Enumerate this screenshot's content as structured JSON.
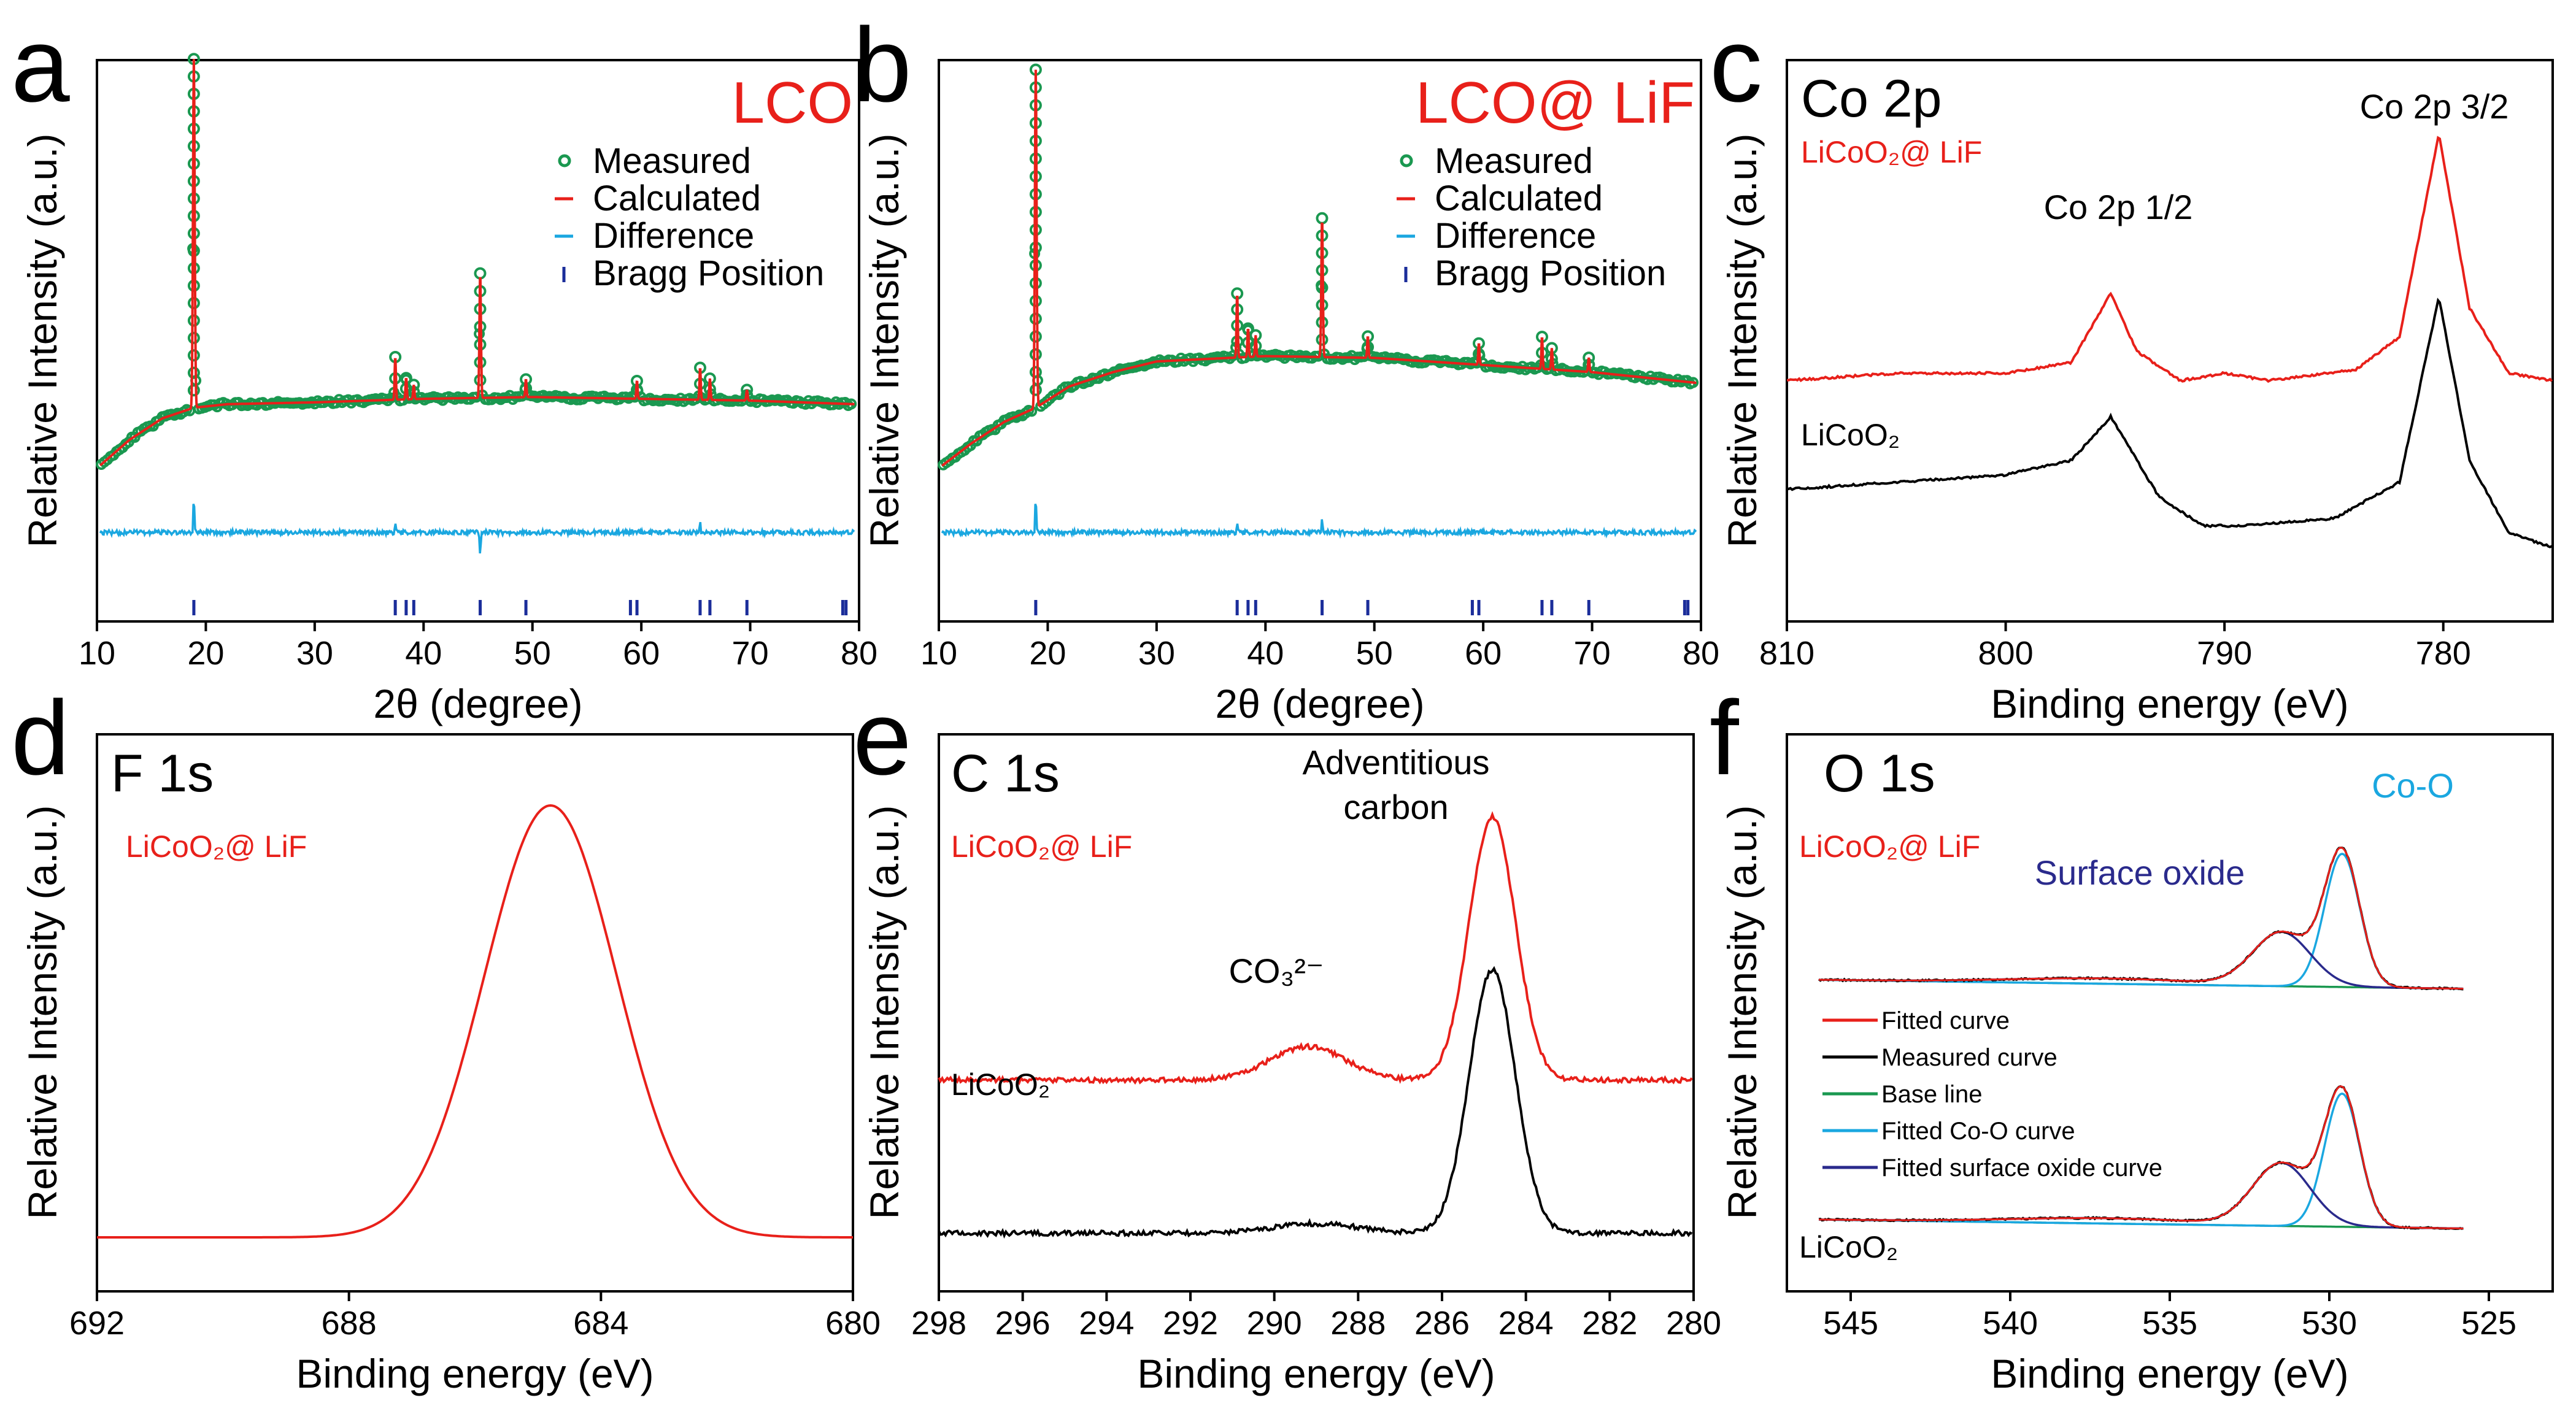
{
  "chart_data": [
    {
      "id": "a",
      "panel_label": "a",
      "type": "line",
      "title": "LCO",
      "xlabel": "2θ (degree)",
      "ylabel": "Relative Intensity (a.u.)",
      "xlim": [
        10,
        80
      ],
      "xticks": [
        "10",
        "20",
        "30",
        "40",
        "50",
        "60",
        "70",
        "80"
      ],
      "colors": {
        "measured": "#1a9850",
        "calculated": "#e8201a",
        "difference": "#1aa7e0",
        "bragg": "#1b2d9a",
        "title": "#e8201a"
      },
      "legend": [
        "Measured",
        "Calculated",
        "Difference",
        "Bragg Position"
      ],
      "series": [
        {
          "name": "Calculated",
          "background": [
            [
              10,
              0.06
            ],
            [
              13,
              0.14
            ],
            [
              16,
              0.2
            ],
            [
              18.9,
              0.23
            ],
            [
              22,
              0.24
            ],
            [
              30,
              0.245
            ],
            [
              40,
              0.255
            ],
            [
              50,
              0.26
            ],
            [
              60,
              0.255
            ],
            [
              70,
              0.25
            ],
            [
              79.5,
              0.24
            ]
          ],
          "peaks": [
            [
              18.9,
              0.98,
              0.08
            ],
            [
              37.4,
              0.12,
              0.06
            ],
            [
              38.4,
              0.06,
              0.06
            ],
            [
              39.1,
              0.04,
              0.06
            ],
            [
              45.2,
              0.35,
              0.07
            ],
            [
              49.4,
              0.05,
              0.06
            ],
            [
              59.6,
              0.05,
              0.06
            ],
            [
              65.4,
              0.09,
              0.06
            ],
            [
              66.3,
              0.06,
              0.06
            ],
            [
              69.7,
              0.03,
              0.06
            ]
          ]
        },
        {
          "name": "Difference",
          "level": 0.5,
          "spikes": [
            [
              18.9,
              0.1
            ],
            [
              37.4,
              0.02
            ],
            [
              45.2,
              -0.06
            ],
            [
              65.4,
              0.03
            ]
          ]
        }
      ],
      "bragg_positions": [
        18.9,
        37.4,
        38.4,
        39.1,
        45.2,
        49.4,
        59.0,
        59.6,
        65.4,
        66.3,
        69.7,
        78.5,
        78.8
      ]
    },
    {
      "id": "b",
      "panel_label": "b",
      "type": "line",
      "title": "LCO@ LiF",
      "xlabel": "2θ (degree)",
      "ylabel": "Relative Intensity (a.u.)",
      "xlim": [
        10,
        80
      ],
      "xticks": [
        "10",
        "20",
        "30",
        "40",
        "50",
        "60",
        "70",
        "80"
      ],
      "colors": {
        "measured": "#1a9850",
        "calculated": "#e8201a",
        "difference": "#1aa7e0",
        "bragg": "#1b2d9a",
        "title": "#e8201a"
      },
      "legend": [
        "Measured",
        "Calculated",
        "Difference",
        "Bragg Position"
      ],
      "series": [
        {
          "name": "Calculated",
          "background": [
            [
              10,
              0.06
            ],
            [
              13,
              0.13
            ],
            [
              16,
              0.19
            ],
            [
              18.9,
              0.23
            ],
            [
              22,
              0.29
            ],
            [
              26,
              0.33
            ],
            [
              30,
              0.36
            ],
            [
              40,
              0.375
            ],
            [
              50,
              0.37
            ],
            [
              60,
              0.35
            ],
            [
              70,
              0.33
            ],
            [
              79.5,
              0.3
            ]
          ],
          "peaks": [
            [
              18.9,
              0.95,
              0.08
            ],
            [
              37.4,
              0.18,
              0.06
            ],
            [
              38.4,
              0.08,
              0.06
            ],
            [
              39.1,
              0.06,
              0.06
            ],
            [
              45.2,
              0.39,
              0.07
            ],
            [
              49.4,
              0.06,
              0.06
            ],
            [
              59.6,
              0.06,
              0.06
            ],
            [
              65.4,
              0.09,
              0.06
            ],
            [
              66.3,
              0.06,
              0.06
            ],
            [
              69.7,
              0.04,
              0.06
            ]
          ]
        },
        {
          "name": "Difference",
          "level": 0.5,
          "spikes": [
            [
              18.9,
              0.1
            ],
            [
              37.4,
              0.02
            ],
            [
              45.2,
              0.04
            ]
          ]
        }
      ],
      "bragg_positions": [
        18.9,
        37.4,
        38.4,
        39.1,
        45.2,
        49.4,
        59.0,
        59.6,
        65.4,
        66.3,
        69.7,
        78.5,
        78.8
      ]
    },
    {
      "id": "c",
      "panel_label": "c",
      "type": "line",
      "title": "Co 2p",
      "xlabel": "Binding energy (eV)",
      "ylabel": "Relative Intensity (a.u.)",
      "xlim": [
        810,
        775
      ],
      "xticks": [
        "810",
        "800",
        "790",
        "780"
      ],
      "series": [
        {
          "name": "LiCoO2@ LiF",
          "color": "#e8201a",
          "offset": 0.52,
          "points": [
            [
              810,
              0.0
            ],
            [
              805,
              0.02
            ],
            [
              800,
              0.02
            ],
            [
              797,
              0.05
            ],
            [
              795.2,
              0.24
            ],
            [
              794,
              0.08
            ],
            [
              792,
              0.0
            ],
            [
              790,
              0.02
            ],
            [
              788,
              0.0
            ],
            [
              784,
              0.03
            ],
            [
              782,
              0.12
            ],
            [
              780.2,
              0.68
            ],
            [
              778.8,
              0.2
            ],
            [
              777,
              0.02
            ],
            [
              775,
              0.0
            ]
          ]
        },
        {
          "name": "LiCoO2",
          "color": "#000000",
          "offset": 0.0,
          "points": [
            [
              810,
              0.22
            ],
            [
              805,
              0.24
            ],
            [
              800,
              0.26
            ],
            [
              797,
              0.3
            ],
            [
              795.2,
              0.42
            ],
            [
              793,
              0.2
            ],
            [
              791,
              0.12
            ],
            [
              789,
              0.12
            ],
            [
              785,
              0.14
            ],
            [
              782,
              0.24
            ],
            [
              780.2,
              0.75
            ],
            [
              778.8,
              0.3
            ],
            [
              777,
              0.1
            ],
            [
              775,
              0.06
            ]
          ]
        }
      ],
      "annotations": [
        "Co 2p 1/2",
        "Co 2p 3/2",
        "LiCoO₂@ LiF",
        "LiCoO₂"
      ]
    },
    {
      "id": "d",
      "panel_label": "d",
      "type": "line",
      "title": "F 1s",
      "xlabel": "Binding energy (eV)",
      "ylabel": "Relative Intensity (a.u.)",
      "xlim": [
        692,
        680
      ],
      "xticks": [
        "692",
        "688",
        "684",
        "680"
      ],
      "series": [
        {
          "name": "LiCoO2@ LiF",
          "color": "#e8201a",
          "center": 684.8,
          "sigma": 1.05,
          "amplitude": 0.88,
          "base": 0.05
        }
      ],
      "annotations": [
        "LiCoO₂@ LiF"
      ]
    },
    {
      "id": "e",
      "panel_label": "e",
      "type": "line",
      "title": "C 1s",
      "xlabel": "Binding energy (eV)",
      "ylabel": "Relative Intensity (a.u.)",
      "xlim": [
        298,
        280
      ],
      "xticks": [
        "298",
        "296",
        "294",
        "292",
        "290",
        "288",
        "286",
        "284",
        "282",
        "280"
      ],
      "series": [
        {
          "name": "LiCoO2@ LiF",
          "color": "#e8201a",
          "base": 0.38,
          "main_peak": [
            284.8,
            0.55,
            0.55
          ],
          "shoulder": [
            289.2,
            0.07,
            0.9
          ]
        },
        {
          "name": "LiCoO2",
          "color": "#000000",
          "base": 0.06,
          "main_peak": [
            284.8,
            0.55,
            0.55
          ],
          "shoulder": [
            289.0,
            0.02,
            1.0
          ]
        }
      ],
      "annotations": [
        "Adventitious",
        "carbon",
        "CO₃²⁻",
        "LiCoO₂@ LiF",
        "LiCoO₂"
      ]
    },
    {
      "id": "f",
      "panel_label": "f",
      "type": "line",
      "title": "O 1s",
      "xlabel": "Binding energy (eV)",
      "ylabel": "Relative Intensity (a.u.)",
      "xlim": [
        547,
        523
      ],
      "xticks": [
        "545",
        "540",
        "535",
        "530",
        "525"
      ],
      "legend": [
        "Fitted curve",
        "Measured curve",
        "Base line",
        "Fitted Co-O curve",
        "Fitted surface oxide curve"
      ],
      "colors": {
        "fitted": "#e8201a",
        "measured": "#000000",
        "baseline": "#1a9850",
        "coo": "#1aa7e0",
        "surface": "#2a2a8c"
      },
      "series": [
        {
          "name": "LiCoO2@ LiF",
          "offset": 0.54,
          "coo": [
            529.6,
            0.3,
            0.55
          ],
          "surface": [
            531.5,
            0.12,
            0.9
          ]
        },
        {
          "name": "LiCoO2",
          "offset": 0.0,
          "coo": [
            529.6,
            0.3,
            0.55
          ],
          "surface": [
            531.5,
            0.14,
            0.9
          ]
        }
      ],
      "annotations": [
        "Co-O",
        "Surface oxide",
        "LiCoO₂@ LiF",
        "LiCoO₂"
      ]
    }
  ]
}
